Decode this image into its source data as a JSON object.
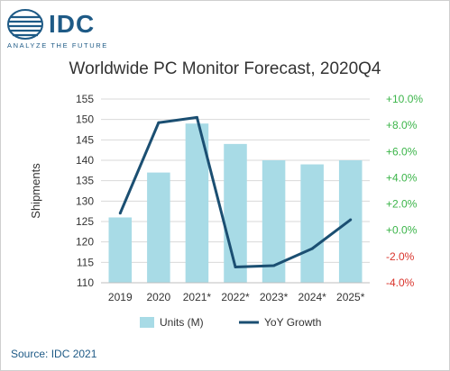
{
  "brand": {
    "name": "IDC",
    "tagline": "ANALYZE THE FUTURE"
  },
  "colors": {
    "bar": "#a8dbe6",
    "line": "#1b4f72",
    "positive_axis": "#3cb54a",
    "negative_axis": "#d9332b",
    "brand": "#1e5a86"
  },
  "source": "Source: IDC 2021",
  "chart_data": {
    "type": "bar",
    "title": "Worldwide PC Monitor Forecast, 2020Q4",
    "ylabel": "Shipments",
    "xlabel": "",
    "categories": [
      "2019",
      "2020",
      "2021*",
      "2022*",
      "2023*",
      "2024*",
      "2025*"
    ],
    "ylim": [
      110,
      155
    ],
    "yticks": [
      "110",
      "115",
      "120",
      "125",
      "130",
      "135",
      "140",
      "145",
      "150",
      "155"
    ],
    "y2lim": [
      -4.0,
      10.0
    ],
    "y2ticks": [
      "-4.0%",
      "-2.0%",
      "+0.0%",
      "+2.0%",
      "+4.0%",
      "+6.0%",
      "+8.0%",
      "+10.0%"
    ],
    "grid": true,
    "legend": "bottom",
    "series": [
      {
        "name": "Units (M)",
        "type": "bar",
        "axis": "left",
        "values": [
          126,
          137,
          149,
          144,
          140,
          139,
          140
        ]
      },
      {
        "name": "YoY Growth",
        "type": "line",
        "axis": "right",
        "values": [
          1.3,
          8.2,
          8.6,
          -2.8,
          -2.7,
          -1.4,
          0.8
        ]
      }
    ]
  }
}
